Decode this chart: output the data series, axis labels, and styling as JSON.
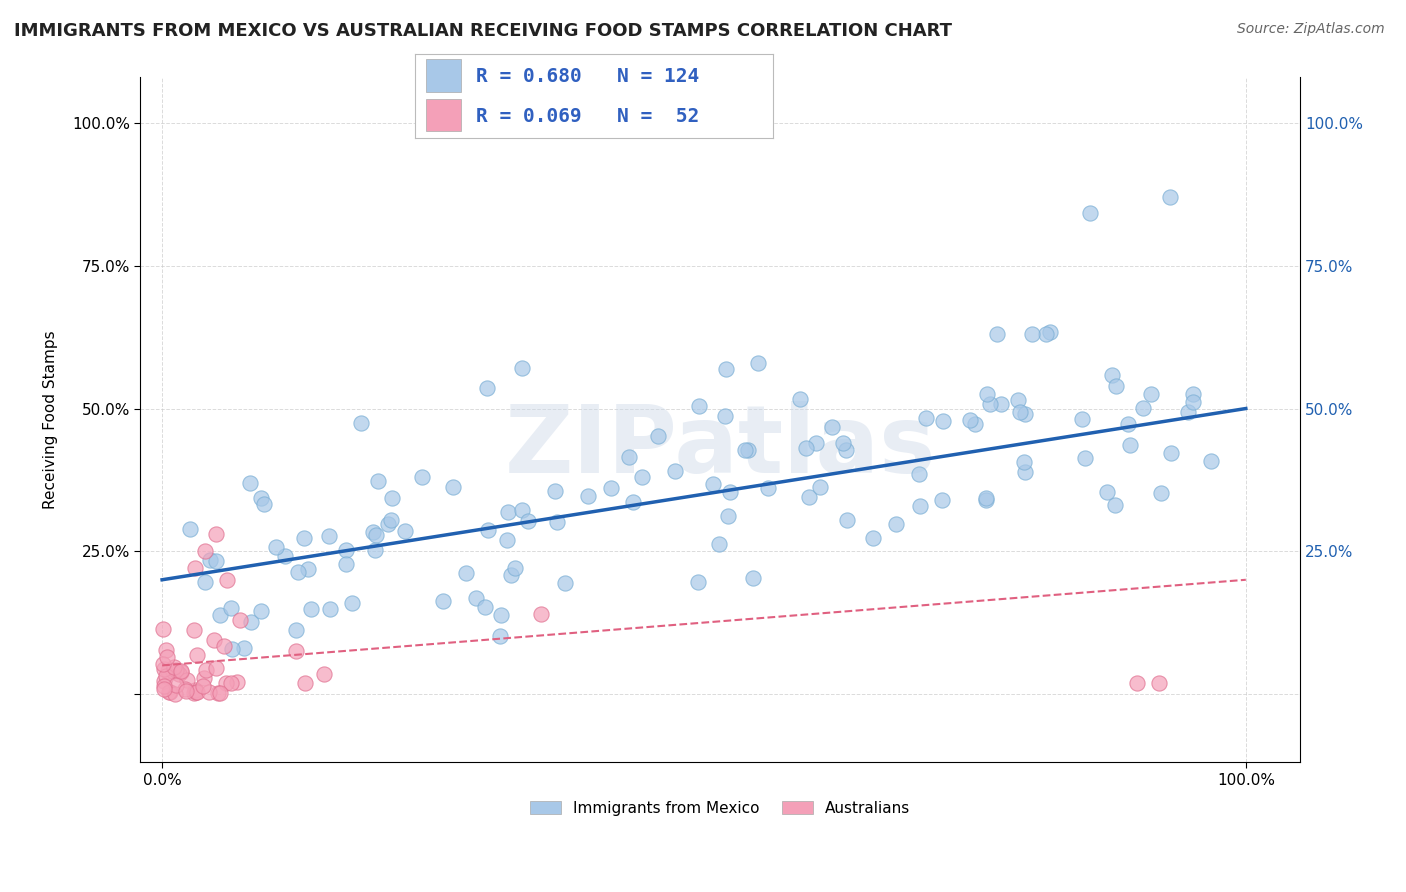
{
  "title": "IMMIGRANTS FROM MEXICO VS AUSTRALIAN RECEIVING FOOD STAMPS CORRELATION CHART",
  "source": "Source: ZipAtlas.com",
  "ylabel": "Receiving Food Stamps",
  "xlim": [
    -0.02,
    1.05
  ],
  "ylim": [
    -0.12,
    1.08
  ],
  "yticks": [
    0.0,
    0.25,
    0.5,
    0.75,
    1.0
  ],
  "ytick_labels_left": [
    "",
    "25.0%",
    "50.0%",
    "75.0%",
    "100.0%"
  ],
  "ytick_labels_right": [
    "",
    "25.0%",
    "50.0%",
    "75.0%",
    "100.0%"
  ],
  "xticks": [
    0.0,
    1.0
  ],
  "xtick_labels": [
    "0.0%",
    "100.0%"
  ],
  "blue_R": 0.68,
  "blue_N": 124,
  "pink_R": 0.069,
  "pink_N": 52,
  "blue_color": "#a8c8e8",
  "blue_edge_color": "#7aaed4",
  "blue_line_color": "#2060b0",
  "pink_color": "#f4a0b8",
  "pink_edge_color": "#e07090",
  "pink_line_color": "#e06080",
  "background_color": "#ffffff",
  "grid_color": "#cccccc",
  "watermark": "ZIPatlas",
  "title_fontsize": 13,
  "label_fontsize": 11,
  "legend_R_color": "#3060c0",
  "blue_line_x0": 0.0,
  "blue_line_y0": 0.2,
  "blue_line_x1": 1.0,
  "blue_line_y1": 0.5,
  "pink_line_x0": 0.0,
  "pink_line_y0": 0.05,
  "pink_line_x1": 1.0,
  "pink_line_y1": 0.2
}
